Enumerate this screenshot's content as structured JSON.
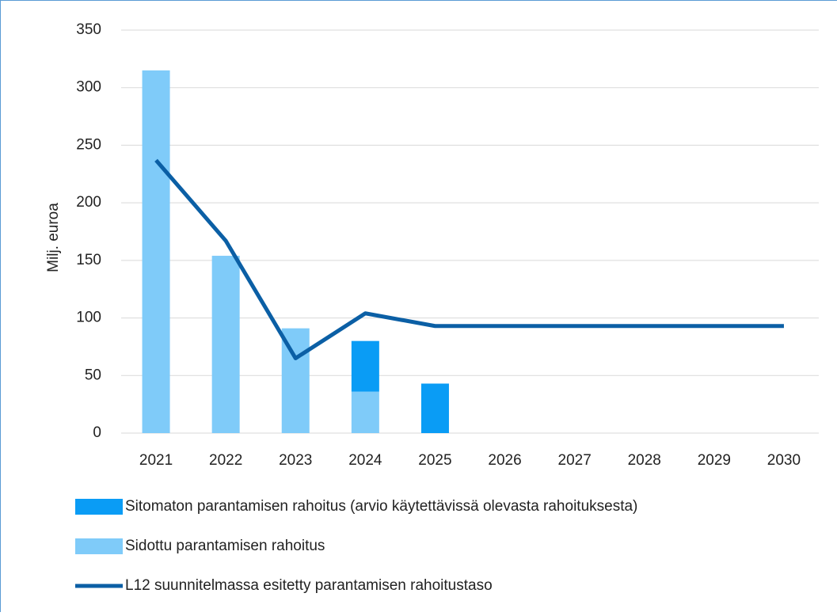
{
  "chart_data": {
    "type": "bar",
    "stacked": true,
    "y_label": "Milj. euroa",
    "categories": [
      "2021",
      "2022",
      "2023",
      "2024",
      "2025",
      "2026",
      "2027",
      "2028",
      "2029",
      "2030"
    ],
    "series": [
      {
        "name": "Sitomaton parantamisen rahoitus (arvio käytettävissä olevasta rahoituksesta)",
        "type": "bar",
        "color": "#0a9cf5",
        "values": [
          0,
          0,
          0,
          44,
          43,
          0,
          0,
          0,
          0,
          0
        ]
      },
      {
        "name": "Sidottu parantamisen rahoitus",
        "type": "bar",
        "color": "#7fcbf9",
        "values": [
          315,
          154,
          91,
          36,
          0,
          0,
          0,
          0,
          0,
          0
        ]
      },
      {
        "name": "L12 suunnitelmassa esitetty parantamisen rahoitustaso",
        "type": "line",
        "color": "#0b5fa5",
        "values": [
          237,
          167,
          65,
          104,
          93,
          93,
          93,
          93,
          93,
          93
        ]
      }
    ],
    "ylim": [
      0,
      350
    ],
    "yticks": [
      0,
      50,
      100,
      150,
      200,
      250,
      300,
      350
    ],
    "grid": true,
    "legend": "bottom"
  }
}
